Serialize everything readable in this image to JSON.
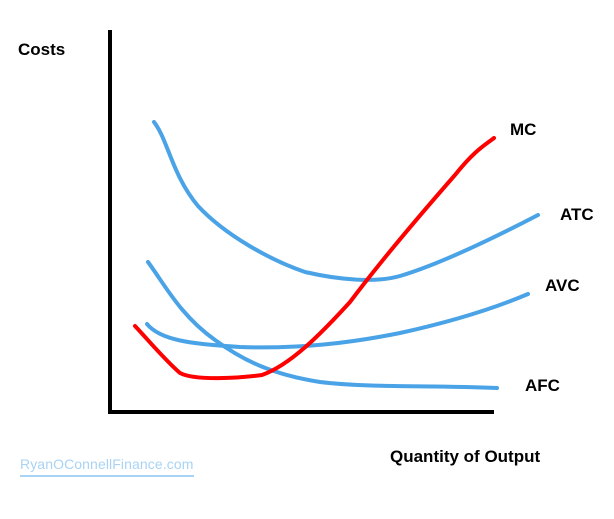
{
  "axes": {
    "y_label": "Costs",
    "x_label": "Quantity of Output"
  },
  "curves": [
    {
      "name": "MC",
      "color": "#ff0000"
    },
    {
      "name": "ATC",
      "color": "#4aa3e6"
    },
    {
      "name": "AVC",
      "color": "#4aa3e6"
    },
    {
      "name": "AFC",
      "color": "#4aa3e6"
    }
  ],
  "watermark": "RyanOConnellFinance.com"
}
